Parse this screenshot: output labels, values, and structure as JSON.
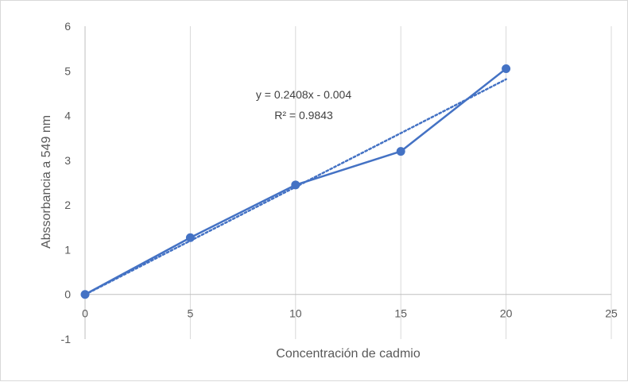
{
  "chart_data": {
    "type": "scatter",
    "title": "",
    "xlabel": "Concentración de cadmio",
    "ylabel": "Abssorbancia a 549 nm",
    "xlim": [
      0,
      25
    ],
    "ylim": [
      -1,
      6
    ],
    "x_ticks": [
      "0",
      "5",
      "10",
      "15",
      "20",
      "25"
    ],
    "y_ticks": [
      "-1",
      "0",
      "1",
      "2",
      "3",
      "4",
      "5",
      "6"
    ],
    "grid": "vertical",
    "legend": "none",
    "series": [
      {
        "x": [
          0,
          5,
          10,
          15,
          20
        ],
        "y": [
          0,
          1.27,
          2.45,
          3.2,
          5.05
        ],
        "color": "#4472C4",
        "style": "solid line with markers"
      }
    ],
    "trendline": {
      "kind": "linear",
      "slope": 0.2408,
      "intercept": -0.004,
      "x_range": [
        0,
        20
      ],
      "color": "#4472C4",
      "style": "dotted",
      "equation_label": "y = 0.2408x - 0.004",
      "r2_label": "R² = 0.9843"
    }
  }
}
